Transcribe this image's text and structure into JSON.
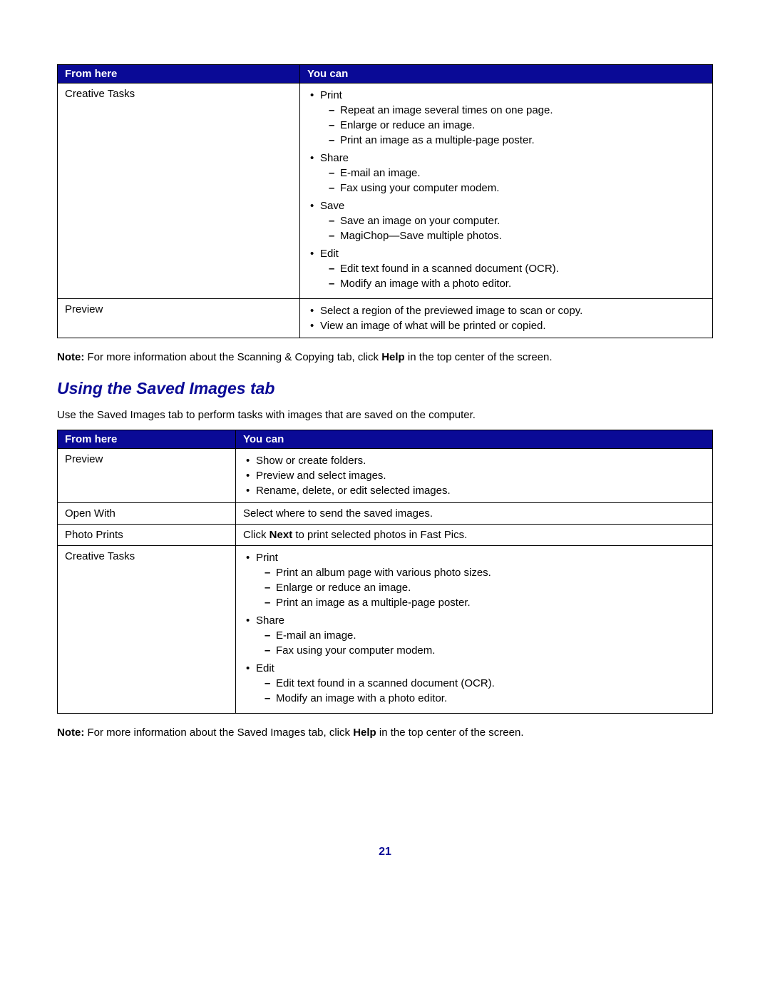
{
  "colors": {
    "header_bg": "#0a0a96",
    "header_fg": "#ffffff",
    "heading": "#0a0a96"
  },
  "table1": {
    "headers": [
      "From here",
      "You can"
    ],
    "rows": [
      {
        "from": "Creative Tasks",
        "groups": [
          {
            "label": "Print",
            "items": [
              "Repeat an image several times on one page.",
              "Enlarge or reduce an image.",
              "Print an image as a multiple-page poster."
            ]
          },
          {
            "label": "Share",
            "items": [
              "E-mail an image.",
              "Fax using your computer modem."
            ]
          },
          {
            "label": "Save",
            "items": [
              "Save an image on your computer.",
              "MagiChop—Save multiple photos."
            ]
          },
          {
            "label": "Edit",
            "items": [
              "Edit text found in a scanned document (OCR).",
              "Modify an image with a photo editor."
            ]
          }
        ]
      },
      {
        "from": "Preview",
        "bullets": [
          "Select a region of the previewed image to scan or copy.",
          "View an image of what will be printed or copied."
        ]
      }
    ]
  },
  "note1": {
    "prefix": "Note:",
    "text_before": " For more information about the Scanning & Copying tab, click ",
    "bold": "Help",
    "text_after": " in the top center of the screen."
  },
  "section_heading": "Using the Saved Images tab",
  "intro": "Use the Saved Images tab to perform tasks with images that are saved on the computer.",
  "table2": {
    "headers": [
      "From here",
      "You can"
    ],
    "rows": [
      {
        "from": "Preview",
        "bullets": [
          "Show or create folders.",
          "Preview and select images.",
          "Rename, delete, or edit selected images."
        ]
      },
      {
        "from": "Open With",
        "plain": "Select where to send the saved images."
      },
      {
        "from": "Photo Prints",
        "plain_parts": {
          "before": "Click ",
          "bold": "Next",
          "after": " to print selected photos in Fast Pics."
        }
      },
      {
        "from": "Creative Tasks",
        "groups": [
          {
            "label": "Print",
            "items": [
              "Print an album page with various photo sizes.",
              "Enlarge or reduce an image.",
              "Print an image as a multiple-page poster."
            ]
          },
          {
            "label": "Share",
            "items": [
              "E-mail an image.",
              "Fax using your computer modem."
            ]
          },
          {
            "label": "Edit",
            "items": [
              "Edit text found in a scanned document (OCR).",
              "Modify an image with a photo editor."
            ]
          }
        ]
      }
    ]
  },
  "note2": {
    "prefix": "Note:",
    "text_before": " For more information about the Saved Images tab, click ",
    "bold": "Help",
    "text_after": " in the top center of the screen."
  },
  "page_number": "21"
}
